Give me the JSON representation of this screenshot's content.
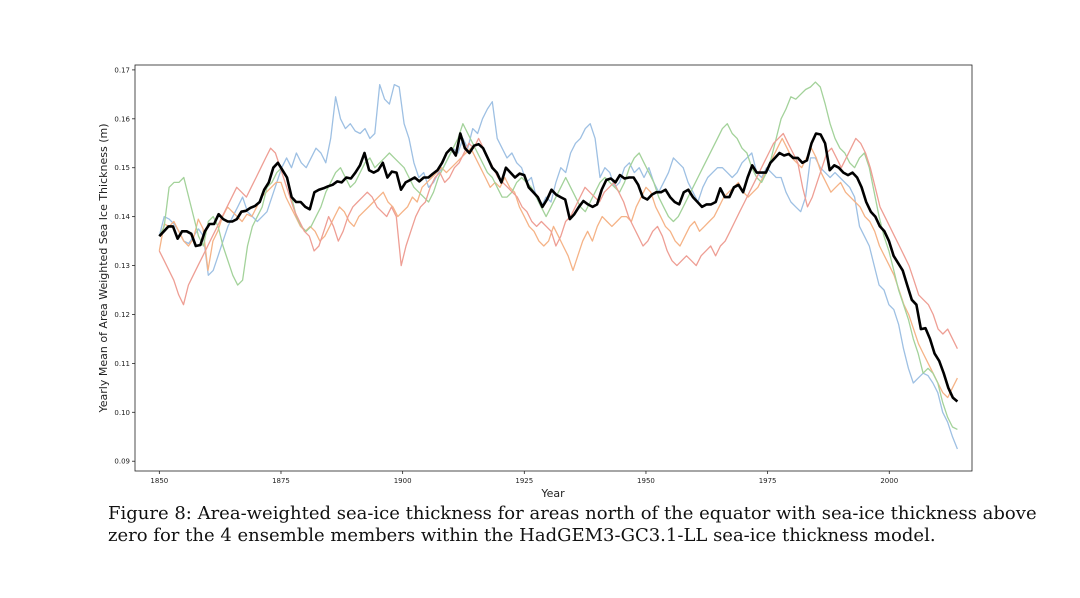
{
  "caption": {
    "line1": "Figure 8: Area-weighted sea-ice thickness for areas north of the equator with sea-ice thickness above",
    "line2": "zero for the 4 ensemble members within the HadGEM3-GC3.1-LL sea-ice thickness model."
  },
  "chart_data": {
    "type": "line",
    "title": "",
    "xlabel": "Year",
    "ylabel": "Yearly Mean of Area Weighted Sea Ice Thickness (m)",
    "xlim": [
      1845,
      2017
    ],
    "ylim": [
      0.088,
      0.171
    ],
    "xticks": [
      1850,
      1875,
      1900,
      1925,
      1950,
      1975,
      2000
    ],
    "yticks": [
      0.09,
      0.1,
      0.11,
      0.12,
      0.13,
      0.14,
      0.15,
      0.16,
      0.17
    ],
    "grid": false,
    "legend": "none",
    "x_start": 1850,
    "x_end": 2014,
    "series": [
      {
        "color": "#9ec0e3",
        "values": [
          0.136,
          0.14,
          0.1395,
          0.1385,
          0.137,
          0.135,
          0.1345,
          0.136,
          0.1375,
          0.136,
          0.128,
          0.129,
          0.132,
          0.135,
          0.138,
          0.14,
          0.142,
          0.144,
          0.141,
          0.14,
          0.139,
          0.14,
          0.141,
          0.144,
          0.147,
          0.15,
          0.152,
          0.15,
          0.153,
          0.151,
          0.15,
          0.152,
          0.154,
          0.153,
          0.151,
          0.156,
          0.1645,
          0.16,
          0.158,
          0.159,
          0.1575,
          0.157,
          0.158,
          0.156,
          0.157,
          0.167,
          0.164,
          0.163,
          0.167,
          0.1665,
          0.159,
          0.156,
          0.151,
          0.148,
          0.149,
          0.146,
          0.147,
          0.149,
          0.15,
          0.152,
          0.154,
          0.153,
          0.156,
          0.154,
          0.158,
          0.157,
          0.16,
          0.162,
          0.1635,
          0.156,
          0.154,
          0.152,
          0.153,
          0.151,
          0.15,
          0.147,
          0.148,
          0.144,
          0.142,
          0.144,
          0.143,
          0.147,
          0.15,
          0.149,
          0.153,
          0.155,
          0.156,
          0.158,
          0.159,
          0.156,
          0.148,
          0.15,
          0.149,
          0.146,
          0.147,
          0.15,
          0.151,
          0.149,
          0.15,
          0.148,
          0.15,
          0.147,
          0.145,
          0.147,
          0.149,
          0.152,
          0.151,
          0.15,
          0.147,
          0.145,
          0.143,
          0.146,
          0.148,
          0.149,
          0.15,
          0.15,
          0.149,
          0.148,
          0.149,
          0.151,
          0.152,
          0.153,
          0.149,
          0.148,
          0.15,
          0.149,
          0.148,
          0.148,
          0.145,
          0.143,
          0.142,
          0.141,
          0.144,
          0.152,
          0.152,
          0.15,
          0.149,
          0.148,
          0.149,
          0.148,
          0.147,
          0.146,
          0.144,
          0.138,
          0.136,
          0.134,
          0.13,
          0.126,
          0.125,
          0.122,
          0.121,
          0.118,
          0.113,
          0.109,
          0.106,
          0.107,
          0.108,
          0.1075,
          0.106,
          0.104,
          0.1,
          0.098,
          0.095,
          0.0925
        ]
      },
      {
        "color": "#f5b387",
        "values": [
          0.133,
          0.1385,
          0.138,
          0.139,
          0.137,
          0.135,
          0.134,
          0.1355,
          0.1395,
          0.1375,
          0.129,
          0.135,
          0.137,
          0.14,
          0.142,
          0.141,
          0.14,
          0.139,
          0.1405,
          0.14,
          0.142,
          0.144,
          0.145,
          0.146,
          0.147,
          0.147,
          0.144,
          0.142,
          0.14,
          0.138,
          0.137,
          0.138,
          0.137,
          0.135,
          0.136,
          0.138,
          0.14,
          0.142,
          0.141,
          0.139,
          0.138,
          0.14,
          0.141,
          0.142,
          0.143,
          0.144,
          0.145,
          0.143,
          0.142,
          0.14,
          0.141,
          0.142,
          0.144,
          0.143,
          0.146,
          0.147,
          0.148,
          0.149,
          0.15,
          0.149,
          0.15,
          0.151,
          0.152,
          0.153,
          0.154,
          0.152,
          0.15,
          0.148,
          0.146,
          0.147,
          0.146,
          0.148,
          0.146,
          0.145,
          0.142,
          0.14,
          0.138,
          0.137,
          0.135,
          0.134,
          0.135,
          0.138,
          0.136,
          0.134,
          0.132,
          0.129,
          0.132,
          0.135,
          0.137,
          0.135,
          0.138,
          0.14,
          0.139,
          0.138,
          0.139,
          0.14,
          0.14,
          0.139,
          0.142,
          0.144,
          0.146,
          0.145,
          0.142,
          0.14,
          0.138,
          0.137,
          0.135,
          0.134,
          0.136,
          0.138,
          0.139,
          0.137,
          0.138,
          0.139,
          0.14,
          0.142,
          0.144,
          0.145,
          0.146,
          0.147,
          0.145,
          0.144,
          0.145,
          0.146,
          0.148,
          0.15,
          0.152,
          0.154,
          0.156,
          0.154,
          0.152,
          0.151,
          0.15,
          0.152,
          0.154,
          0.152,
          0.149,
          0.147,
          0.145,
          0.146,
          0.147,
          0.145,
          0.144,
          0.143,
          0.142,
          0.14,
          0.139,
          0.137,
          0.134,
          0.132,
          0.13,
          0.128,
          0.125,
          0.122,
          0.12,
          0.117,
          0.114,
          0.112,
          0.11,
          0.108,
          0.106,
          0.104,
          0.103,
          0.105,
          0.107
        ]
      },
      {
        "color": "#a3d29a",
        "values": [
          0.136,
          0.138,
          0.146,
          0.147,
          0.147,
          0.148,
          0.144,
          0.14,
          0.136,
          0.134,
          0.139,
          0.14,
          0.138,
          0.134,
          0.131,
          0.128,
          0.126,
          0.127,
          0.134,
          0.138,
          0.14,
          0.142,
          0.146,
          0.147,
          0.149,
          0.15,
          0.148,
          0.144,
          0.14,
          0.138,
          0.137,
          0.138,
          0.14,
          0.142,
          0.145,
          0.147,
          0.149,
          0.15,
          0.148,
          0.146,
          0.147,
          0.149,
          0.151,
          0.152,
          0.15,
          0.151,
          0.152,
          0.153,
          0.152,
          0.151,
          0.15,
          0.148,
          0.146,
          0.145,
          0.144,
          0.143,
          0.145,
          0.148,
          0.15,
          0.152,
          0.154,
          0.156,
          0.159,
          0.157,
          0.155,
          0.153,
          0.151,
          0.149,
          0.148,
          0.146,
          0.144,
          0.144,
          0.145,
          0.147,
          0.148,
          0.147,
          0.146,
          0.144,
          0.142,
          0.14,
          0.142,
          0.144,
          0.146,
          0.148,
          0.146,
          0.144,
          0.142,
          0.141,
          0.143,
          0.145,
          0.147,
          0.148,
          0.147,
          0.146,
          0.145,
          0.147,
          0.15,
          0.152,
          0.153,
          0.151,
          0.149,
          0.147,
          0.144,
          0.142,
          0.14,
          0.139,
          0.14,
          0.142,
          0.144,
          0.146,
          0.148,
          0.15,
          0.152,
          0.154,
          0.156,
          0.158,
          0.159,
          0.157,
          0.156,
          0.154,
          0.153,
          0.15,
          0.148,
          0.147,
          0.149,
          0.152,
          0.156,
          0.16,
          0.162,
          0.1645,
          0.164,
          0.165,
          0.166,
          0.1665,
          0.1675,
          0.1665,
          0.163,
          0.159,
          0.156,
          0.154,
          0.153,
          0.151,
          0.15,
          0.152,
          0.153,
          0.15,
          0.145,
          0.14,
          0.136,
          0.133,
          0.129,
          0.125,
          0.122,
          0.119,
          0.115,
          0.112,
          0.108,
          0.109,
          0.108,
          0.106,
          0.102,
          0.099,
          0.097,
          0.0965
        ]
      },
      {
        "color": "#ee9e94",
        "values": [
          0.133,
          0.131,
          0.129,
          0.127,
          0.124,
          0.122,
          0.126,
          0.128,
          0.13,
          0.132,
          0.134,
          0.136,
          0.138,
          0.14,
          0.142,
          0.144,
          0.146,
          0.145,
          0.144,
          0.146,
          0.148,
          0.15,
          0.152,
          0.154,
          0.153,
          0.15,
          0.147,
          0.144,
          0.141,
          0.139,
          0.137,
          0.136,
          0.133,
          0.134,
          0.137,
          0.14,
          0.138,
          0.135,
          0.137,
          0.14,
          0.142,
          0.143,
          0.144,
          0.145,
          0.144,
          0.142,
          0.141,
          0.14,
          0.142,
          0.14,
          0.13,
          0.134,
          0.137,
          0.14,
          0.142,
          0.143,
          0.146,
          0.148,
          0.149,
          0.147,
          0.148,
          0.15,
          0.151,
          0.153,
          0.155,
          0.154,
          0.156,
          0.154,
          0.152,
          0.15,
          0.148,
          0.147,
          0.146,
          0.145,
          0.144,
          0.142,
          0.141,
          0.139,
          0.138,
          0.139,
          0.138,
          0.137,
          0.134,
          0.136,
          0.139,
          0.14,
          0.142,
          0.144,
          0.146,
          0.145,
          0.144,
          0.143,
          0.145,
          0.146,
          0.147,
          0.145,
          0.143,
          0.14,
          0.138,
          0.136,
          0.134,
          0.135,
          0.137,
          0.138,
          0.136,
          0.133,
          0.131,
          0.13,
          0.131,
          0.132,
          0.131,
          0.13,
          0.132,
          0.133,
          0.134,
          0.132,
          0.134,
          0.135,
          0.137,
          0.139,
          0.141,
          0.143,
          0.145,
          0.147,
          0.149,
          0.151,
          0.153,
          0.155,
          0.156,
          0.157,
          0.155,
          0.153,
          0.151,
          0.146,
          0.142,
          0.144,
          0.147,
          0.15,
          0.153,
          0.154,
          0.152,
          0.15,
          0.152,
          0.154,
          0.156,
          0.155,
          0.153,
          0.15,
          0.146,
          0.142,
          0.14,
          0.138,
          0.136,
          0.134,
          0.132,
          0.13,
          0.127,
          0.124,
          0.123,
          0.122,
          0.12,
          0.117,
          0.116,
          0.117,
          0.115,
          0.113
        ]
      },
      {
        "color": "#000000",
        "values": [
          0.136,
          0.137,
          0.138,
          0.138,
          0.1355,
          0.137,
          0.137,
          0.1365,
          0.134,
          0.1342,
          0.137,
          0.1385,
          0.1385,
          0.1405,
          0.1395,
          0.139,
          0.139,
          0.1395,
          0.141,
          0.1412,
          0.1418,
          0.1422,
          0.143,
          0.1455,
          0.147,
          0.15,
          0.151,
          0.1495,
          0.148,
          0.144,
          0.143,
          0.143,
          0.142,
          0.1415,
          0.145,
          0.1455,
          0.1458,
          0.1462,
          0.1465,
          0.1472,
          0.147,
          0.148,
          0.1478,
          0.149,
          0.1505,
          0.153,
          0.1495,
          0.149,
          0.1495,
          0.151,
          0.148,
          0.1492,
          0.149,
          0.1455,
          0.147,
          0.1475,
          0.148,
          0.1472,
          0.148,
          0.148,
          0.1488,
          0.1495,
          0.151,
          0.153,
          0.154,
          0.1525,
          0.157,
          0.154,
          0.153,
          0.1545,
          0.1548,
          0.154,
          0.152,
          0.15,
          0.149,
          0.147,
          0.15,
          0.149,
          0.148,
          0.1488,
          0.1485,
          0.146,
          0.145,
          0.144,
          0.142,
          0.1435,
          0.1455,
          0.1445,
          0.144,
          0.1435,
          0.1395,
          0.1405,
          0.142,
          0.1432,
          0.1425,
          0.142,
          0.1425,
          0.1455,
          0.1475,
          0.1478,
          0.147,
          0.1485,
          0.1478,
          0.148,
          0.148,
          0.1465,
          0.144,
          0.1435,
          0.1445,
          0.145,
          0.145,
          0.1455,
          0.144,
          0.143,
          0.1425,
          0.145,
          0.1455,
          0.144,
          0.143,
          0.142,
          0.1425,
          0.1425,
          0.143,
          0.1458,
          0.144,
          0.144,
          0.146,
          0.1465,
          0.145,
          0.148,
          0.1505,
          0.149,
          0.149,
          0.149,
          0.151,
          0.152,
          0.153,
          0.1525,
          0.1528,
          0.152,
          0.152,
          0.151,
          0.1515,
          0.155,
          0.157,
          0.1568,
          0.155,
          0.1495,
          0.1505,
          0.15,
          0.149,
          0.1485,
          0.149,
          0.148,
          0.146,
          0.143,
          0.141,
          0.14,
          0.138,
          0.137,
          0.135,
          0.132,
          0.1305,
          0.129,
          0.126,
          0.123,
          0.122,
          0.117,
          0.1172,
          0.115,
          0.112,
          0.1105,
          0.108,
          0.105,
          0.103,
          0.1022
        ]
      }
    ]
  }
}
